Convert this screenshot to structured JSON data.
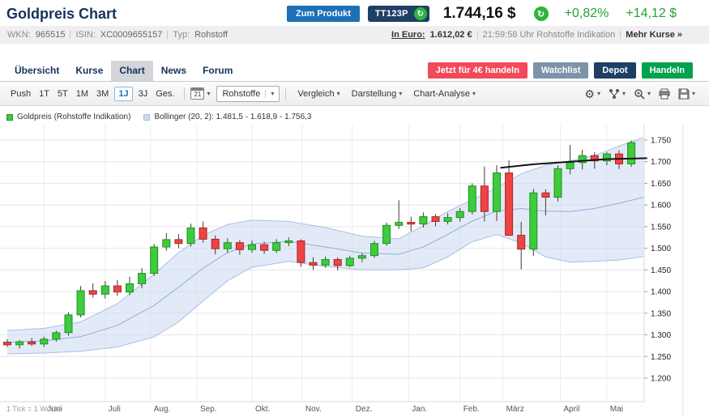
{
  "header": {
    "title": "Goldpreis Chart",
    "zum_produkt": "Zum Produkt",
    "product_code": "TT123P",
    "price": "1.744,16 $",
    "change_pct": "+0,82%",
    "change_abs": "+14,12 $"
  },
  "icons": {
    "refresh": "↻",
    "caret_down": "▾",
    "gear": "⚙"
  },
  "info_bar": {
    "wkn_label": "WKN:",
    "wkn": "965515",
    "isin_label": "ISIN:",
    "isin": "XC0009655157",
    "typ_label": "Typ:",
    "typ": "Rohstoff",
    "in_euro_label": "In Euro:",
    "in_euro_value": "1.612,02 €",
    "time_note": "21:59:58 Uhr Rohstoffe Indikation",
    "mehr_kurse": "Mehr Kurse »"
  },
  "tabs": {
    "items": [
      "Übersicht",
      "Kurse",
      "Chart",
      "News",
      "Forum"
    ],
    "active": "Chart"
  },
  "actions": {
    "trade_promo": "Jetzt für 4€ handeln",
    "watchlist": "Watchlist",
    "depot": "Depot",
    "handeln": "Handeln"
  },
  "toolbar": {
    "push": "Push",
    "ranges": [
      "1T",
      "5T",
      "1M",
      "3M",
      "1J",
      "3J",
      "Ges."
    ],
    "active_range": "1J",
    "calendar_day": "21",
    "instrument": "Rohstoffe",
    "dropdowns": [
      "Vergleich",
      "Darstellung",
      "Chart-Analyse"
    ]
  },
  "chart_data": {
    "type": "candlestick",
    "series_label": "Goldpreis (Rohstoffe Indikation)",
    "tick_note": "1 Tick = 1 Woche",
    "interval": "weekly",
    "ylim": [
      1185,
      1785
    ],
    "y_tick_values": [
      1750,
      1700,
      1650,
      1600,
      1550,
      1500,
      1450,
      1400,
      1350,
      1300,
      1250,
      1200
    ],
    "y_tick_labels": [
      "1.750",
      "1.700",
      "1.650",
      "1.600",
      "1.550",
      "1.500",
      "1.450",
      "1.400",
      "1.350",
      "1.300",
      "1.250",
      "1.200"
    ],
    "months": [
      "Juni",
      "Juli",
      "Aug.",
      "Sep.",
      "Okt.",
      "Nov.",
      "Dez.",
      "Jan.",
      "Feb.",
      "März",
      "April",
      "Mai"
    ],
    "month_week_index": [
      3.5,
      8.5,
      12.2,
      16,
      20.5,
      24.6,
      28.7,
      33.3,
      37.5,
      41,
      45.7,
      49.5
    ],
    "candles": [
      [
        1283,
        1290,
        1272,
        1277
      ],
      [
        1277,
        1288,
        1268,
        1284
      ],
      [
        1284,
        1293,
        1274,
        1279
      ],
      [
        1279,
        1296,
        1272,
        1290
      ],
      [
        1290,
        1310,
        1284,
        1305
      ],
      [
        1305,
        1352,
        1298,
        1346
      ],
      [
        1346,
        1413,
        1340,
        1402
      ],
      [
        1402,
        1419,
        1386,
        1394
      ],
      [
        1394,
        1424,
        1384,
        1413
      ],
      [
        1413,
        1427,
        1390,
        1399
      ],
      [
        1399,
        1434,
        1392,
        1418
      ],
      [
        1418,
        1454,
        1408,
        1442
      ],
      [
        1442,
        1510,
        1436,
        1503
      ],
      [
        1503,
        1535,
        1494,
        1520
      ],
      [
        1520,
        1533,
        1500,
        1511
      ],
      [
        1511,
        1557,
        1504,
        1547
      ],
      [
        1547,
        1562,
        1513,
        1521
      ],
      [
        1521,
        1530,
        1486,
        1499
      ],
      [
        1499,
        1523,
        1490,
        1513
      ],
      [
        1513,
        1519,
        1485,
        1497
      ],
      [
        1497,
        1518,
        1490,
        1508
      ],
      [
        1508,
        1515,
        1487,
        1495
      ],
      [
        1495,
        1521,
        1489,
        1513
      ],
      [
        1513,
        1525,
        1505,
        1517
      ],
      [
        1517,
        1521,
        1457,
        1467
      ],
      [
        1467,
        1479,
        1450,
        1461
      ],
      [
        1461,
        1481,
        1455,
        1474
      ],
      [
        1474,
        1479,
        1449,
        1460
      ],
      [
        1460,
        1483,
        1456,
        1477
      ],
      [
        1477,
        1489,
        1468,
        1483
      ],
      [
        1483,
        1517,
        1478,
        1511
      ],
      [
        1511,
        1559,
        1506,
        1553
      ],
      [
        1553,
        1611,
        1545,
        1560
      ],
      [
        1560,
        1573,
        1539,
        1556
      ],
      [
        1556,
        1583,
        1548,
        1573
      ],
      [
        1573,
        1579,
        1551,
        1562
      ],
      [
        1562,
        1581,
        1555,
        1571
      ],
      [
        1571,
        1593,
        1561,
        1585
      ],
      [
        1585,
        1650,
        1578,
        1644
      ],
      [
        1644,
        1689,
        1562,
        1585
      ],
      [
        1585,
        1692,
        1563,
        1674
      ],
      [
        1674,
        1703,
        1529,
        1530
      ],
      [
        1530,
        1561,
        1451,
        1498
      ],
      [
        1498,
        1637,
        1482,
        1628
      ],
      [
        1628,
        1636,
        1576,
        1618
      ],
      [
        1618,
        1692,
        1608,
        1684
      ],
      [
        1684,
        1739,
        1671,
        1698
      ],
      [
        1698,
        1728,
        1682,
        1714
      ],
      [
        1714,
        1722,
        1684,
        1702
      ],
      [
        1702,
        1722,
        1692,
        1718
      ],
      [
        1718,
        1726,
        1683,
        1695
      ],
      [
        1695,
        1749,
        1688,
        1744
      ]
    ],
    "bollinger": {
      "label": "Bollinger (20, 2): 1.481,5 - 1.618,9 - 1.756,3",
      "upper_value": 1756.3,
      "middle_value": 1618.9,
      "lower_value": 1481.5,
      "upper": [
        [
          0,
          1310
        ],
        [
          3,
          1315
        ],
        [
          6,
          1330
        ],
        [
          9,
          1372
        ],
        [
          12,
          1440
        ],
        [
          14,
          1490
        ],
        [
          16,
          1530
        ],
        [
          18,
          1555
        ],
        [
          20,
          1565
        ],
        [
          23,
          1562
        ],
        [
          26,
          1548
        ],
        [
          29,
          1528
        ],
        [
          32,
          1522
        ],
        [
          34,
          1552
        ],
        [
          36,
          1585
        ],
        [
          38,
          1612
        ],
        [
          40,
          1640
        ],
        [
          42,
          1672
        ],
        [
          44,
          1692
        ],
        [
          46,
          1702
        ],
        [
          48,
          1714
        ],
        [
          50,
          1736
        ],
        [
          52,
          1756
        ]
      ],
      "middle": [
        [
          0,
          1283
        ],
        [
          3,
          1286
        ],
        [
          6,
          1296
        ],
        [
          9,
          1322
        ],
        [
          12,
          1368
        ],
        [
          14,
          1410
        ],
        [
          16,
          1454
        ],
        [
          18,
          1490
        ],
        [
          20,
          1510
        ],
        [
          23,
          1516
        ],
        [
          26,
          1503
        ],
        [
          29,
          1489
        ],
        [
          32,
          1486
        ],
        [
          34,
          1503
        ],
        [
          36,
          1532
        ],
        [
          38,
          1563
        ],
        [
          40,
          1586
        ],
        [
          42,
          1592
        ],
        [
          44,
          1586
        ],
        [
          46,
          1585
        ],
        [
          48,
          1592
        ],
        [
          50,
          1604
        ],
        [
          52,
          1618
        ]
      ],
      "lower": [
        [
          0,
          1256
        ],
        [
          3,
          1258
        ],
        [
          6,
          1262
        ],
        [
          9,
          1272
        ],
        [
          12,
          1295
        ],
        [
          14,
          1330
        ],
        [
          16,
          1378
        ],
        [
          18,
          1425
        ],
        [
          20,
          1456
        ],
        [
          23,
          1470
        ],
        [
          26,
          1458
        ],
        [
          29,
          1450
        ],
        [
          32,
          1450
        ],
        [
          34,
          1455
        ],
        [
          36,
          1480
        ],
        [
          38,
          1515
        ],
        [
          40,
          1532
        ],
        [
          42,
          1512
        ],
        [
          44,
          1480
        ],
        [
          46,
          1468
        ],
        [
          48,
          1470
        ],
        [
          50,
          1473
        ],
        [
          52,
          1481
        ]
      ]
    },
    "trendlines": [
      {
        "color": "#141414",
        "points": [
          [
            40.3,
            1686
          ],
          [
            43,
            1694
          ],
          [
            46,
            1700
          ],
          [
            49,
            1706
          ],
          [
            52.3,
            1708
          ]
        ]
      }
    ],
    "colors": {
      "up": "#3ecb3e",
      "up_border": "#1d921d",
      "down": "#ef4444",
      "down_border": "#a82525",
      "band_fill": "#ccd9f0",
      "band_edge": "#a8bfe4",
      "positive": "#27a22e"
    }
  }
}
